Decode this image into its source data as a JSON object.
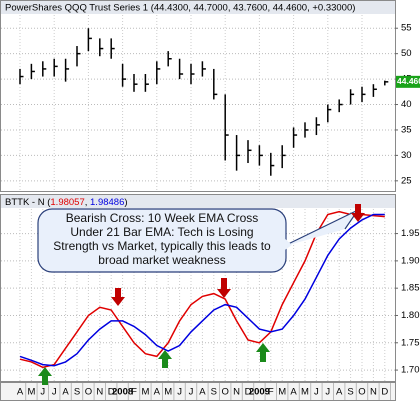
{
  "chart_data": [
    {
      "type": "ohlc",
      "title": "PowerShares QQQ Trust Series 1 (44.4300, 44.7000, 43.7600, 44.4600, +0.33000)",
      "last_label": "44.4600",
      "color": "#000000",
      "high": [
        47,
        48,
        48.5,
        49,
        49,
        51.5,
        55,
        53,
        53,
        48,
        46,
        46,
        48.5,
        50.5,
        49,
        48,
        48.5,
        47,
        42,
        34,
        33,
        32,
        30.5,
        32,
        35.5,
        36.5,
        37.5,
        40,
        41,
        43,
        43.5,
        44,
        44.7
      ],
      "low": [
        44,
        45,
        45.5,
        45.5,
        44.5,
        47.5,
        50.5,
        49.5,
        49,
        43.5,
        42.5,
        42.5,
        44,
        47.5,
        45,
        44,
        45.5,
        41,
        29,
        27,
        28.5,
        28,
        26,
        27.5,
        31.5,
        33.5,
        34,
        36.5,
        38.5,
        40,
        40.5,
        41.5,
        43.76
      ],
      "close": [
        45.5,
        46.5,
        47,
        47.5,
        47,
        50,
        53,
        51,
        51,
        45,
        44,
        44,
        47,
        49,
        46,
        46,
        47,
        42,
        34,
        30,
        31,
        30,
        28,
        30,
        34,
        35,
        36,
        39,
        40,
        42,
        42,
        43,
        44.46
      ],
      "ylim": [
        23,
        57.6
      ],
      "yticks": [
        25,
        30,
        35,
        40,
        45,
        50,
        55
      ],
      "grid": true
    },
    {
      "type": "line",
      "subtitle_parts": [
        "BTTK - N (",
        "1.98057",
        ", ",
        "1.98486",
        ")"
      ],
      "categories": [
        "A",
        "M",
        "J",
        "J",
        "A",
        "S",
        "O",
        "N",
        "D",
        "2008",
        "F",
        "M",
        "A",
        "M",
        "J",
        "J",
        "A",
        "S",
        "O",
        "N",
        "D",
        "2009",
        "F",
        "M",
        "A",
        "M",
        "J",
        "J",
        "A",
        "S",
        "O",
        "N",
        "D"
      ],
      "series": [
        {
          "color": "#e00000",
          "values": [
            1.72,
            1.715,
            1.705,
            1.71,
            1.74,
            1.77,
            1.8,
            1.815,
            1.81,
            1.78,
            1.75,
            1.73,
            1.725,
            1.75,
            1.79,
            1.82,
            1.835,
            1.84,
            1.83,
            1.79,
            1.755,
            1.75,
            1.77,
            1.82,
            1.86,
            1.9,
            1.95,
            1.985,
            1.99,
            1.985,
            1.985,
            1.983,
            1.981
          ]
        },
        {
          "color": "#0000e0",
          "values": [
            1.725,
            1.718,
            1.71,
            1.708,
            1.715,
            1.73,
            1.755,
            1.775,
            1.79,
            1.79,
            1.78,
            1.765,
            1.745,
            1.735,
            1.745,
            1.77,
            1.79,
            1.81,
            1.82,
            1.815,
            1.795,
            1.775,
            1.77,
            1.775,
            1.8,
            1.83,
            1.87,
            1.91,
            1.94,
            1.96,
            1.975,
            1.985,
            1.985
          ]
        }
      ],
      "ylim": [
        1.68,
        1.995
      ],
      "yticks": [
        {
          "value": 1.7,
          "label": "1.70"
        },
        {
          "value": 1.75,
          "label": "1.75"
        },
        {
          "value": 1.8,
          "label": "1.80"
        },
        {
          "value": 1.85,
          "label": "1.85"
        },
        {
          "value": 1.9,
          "label": "1.90"
        },
        {
          "value": 1.95,
          "label": "1.95"
        }
      ],
      "grid": true,
      "annotation": [
        "Bearish Cross: 10 Week EMA Cross",
        "Under 21 Bar EMA: Tech is Losing",
        "Strength vs Market, typically this leads to",
        "broad market weakness"
      ]
    }
  ]
}
